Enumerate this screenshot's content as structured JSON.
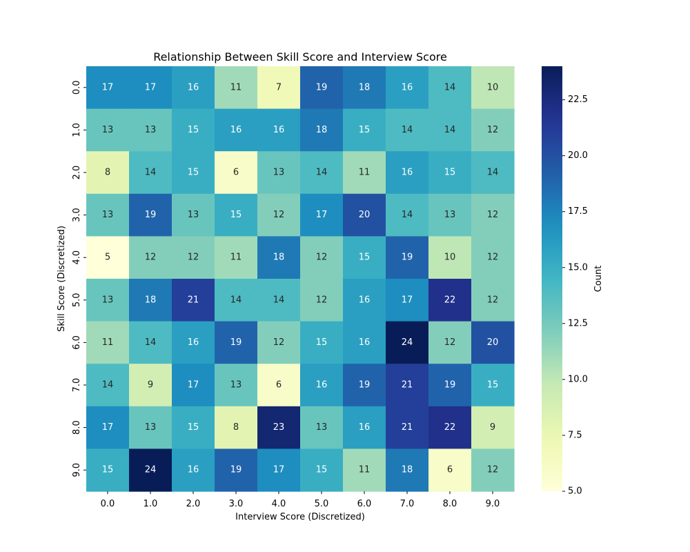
{
  "chart_data": {
    "type": "heatmap",
    "title": "Relationship Between Skill Score and Interview Score",
    "xlabel": "Interview Score (Discretized)",
    "ylabel": "Skill Score (Discretized)",
    "x_categories": [
      "0.0",
      "1.0",
      "2.0",
      "3.0",
      "4.0",
      "5.0",
      "6.0",
      "7.0",
      "8.0",
      "9.0"
    ],
    "y_categories": [
      "0.0",
      "1.0",
      "2.0",
      "3.0",
      "4.0",
      "5.0",
      "6.0",
      "7.0",
      "8.0",
      "9.0"
    ],
    "values": [
      [
        17,
        17,
        16,
        11,
        7,
        19,
        18,
        16,
        14,
        10
      ],
      [
        13,
        13,
        15,
        16,
        16,
        18,
        15,
        14,
        14,
        12
      ],
      [
        8,
        14,
        15,
        6,
        13,
        14,
        11,
        16,
        15,
        14
      ],
      [
        13,
        19,
        13,
        15,
        12,
        17,
        20,
        14,
        13,
        12
      ],
      [
        5,
        12,
        12,
        11,
        18,
        12,
        15,
        19,
        10,
        12
      ],
      [
        13,
        18,
        21,
        14,
        14,
        12,
        16,
        17,
        22,
        12
      ],
      [
        11,
        14,
        16,
        19,
        12,
        15,
        16,
        24,
        12,
        20
      ],
      [
        14,
        9,
        17,
        13,
        6,
        16,
        19,
        21,
        19,
        15
      ],
      [
        17,
        13,
        15,
        8,
        23,
        13,
        16,
        21,
        22,
        9
      ],
      [
        15,
        24,
        16,
        19,
        17,
        15,
        11,
        18,
        6,
        12
      ]
    ],
    "colormap": "YlGnBu",
    "colorbar": {
      "label": "Count",
      "range": [
        5,
        24
      ],
      "ticks": [
        "5.0",
        "7.5",
        "10.0",
        "12.5",
        "15.0",
        "17.5",
        "20.0",
        "22.5"
      ]
    },
    "annotations": true,
    "grid": false
  }
}
